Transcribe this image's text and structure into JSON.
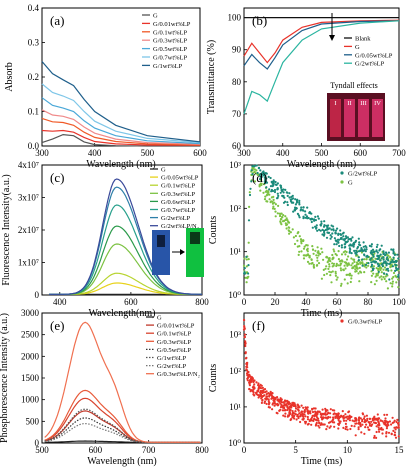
{
  "chart_data": [
    {
      "id": "a",
      "type": "line",
      "panel_label": "(a)",
      "xlabel": "Wavelength (nm)",
      "ylabel": "Absorb",
      "xlim": [
        300,
        600
      ],
      "ylim": [
        0,
        0.4
      ],
      "xticks": [
        300,
        400,
        500,
        600
      ],
      "yticks": [
        0.0,
        0.1,
        0.2,
        0.3,
        0.4
      ],
      "ytick_labels": [
        "0.0",
        "0.1",
        "0.2",
        "0.3",
        "0.4"
      ],
      "legend": "top-right",
      "series": [
        {
          "name": "G",
          "color": "#555555",
          "x": [
            300,
            320,
            340,
            360,
            380,
            400,
            440,
            500,
            600
          ],
          "y": [
            0.01,
            0.02,
            0.033,
            0.03,
            0.012,
            0.004,
            0.001,
            0.0,
            0.0
          ]
        },
        {
          "name": "G/0.01wt%LP",
          "color": "#e8332a",
          "x": [
            300,
            320,
            340,
            360,
            380,
            400,
            440,
            500,
            600
          ],
          "y": [
            0.045,
            0.043,
            0.045,
            0.04,
            0.025,
            0.013,
            0.006,
            0.003,
            0.002
          ]
        },
        {
          "name": "G/0.1wt%LP",
          "color": "#f05a28",
          "x": [
            300,
            320,
            340,
            360,
            380,
            400,
            440,
            500,
            600
          ],
          "y": [
            0.08,
            0.07,
            0.068,
            0.06,
            0.04,
            0.025,
            0.013,
            0.006,
            0.003
          ]
        },
        {
          "name": "G/0.3wt%LP",
          "color": "#f08a8a",
          "x": [
            300,
            320,
            340,
            360,
            380,
            400,
            440,
            500,
            600
          ],
          "y": [
            0.105,
            0.09,
            0.086,
            0.077,
            0.055,
            0.037,
            0.02,
            0.01,
            0.005
          ]
        },
        {
          "name": "G/0.5wt%LP",
          "color": "#4aa8d8",
          "x": [
            300,
            320,
            340,
            360,
            380,
            400,
            440,
            500,
            600
          ],
          "y": [
            0.14,
            0.118,
            0.11,
            0.1,
            0.073,
            0.052,
            0.03,
            0.015,
            0.007
          ]
        },
        {
          "name": "G/0.7wt%LP",
          "color": "#7ec6e8",
          "x": [
            300,
            320,
            340,
            360,
            380,
            400,
            440,
            500,
            600
          ],
          "y": [
            0.18,
            0.155,
            0.145,
            0.132,
            0.1,
            0.072,
            0.043,
            0.022,
            0.01
          ]
        },
        {
          "name": "G/1wt%LP",
          "color": "#1f5f8b",
          "x": [
            300,
            320,
            340,
            360,
            380,
            400,
            440,
            500,
            600
          ],
          "y": [
            0.245,
            0.21,
            0.192,
            0.175,
            0.135,
            0.1,
            0.06,
            0.03,
            0.012
          ]
        }
      ]
    },
    {
      "id": "b",
      "type": "line",
      "panel_label": "(b)",
      "xlabel": "Wavelength (nm)",
      "ylabel": "Transmittance (%)",
      "xlim": [
        300,
        700
      ],
      "ylim": [
        60,
        103
      ],
      "xticks": [
        300,
        400,
        500,
        600,
        700
      ],
      "yticks": [
        60,
        70,
        80,
        90,
        100
      ],
      "ytick_labels": [
        "60",
        "70",
        "80",
        "90",
        "100"
      ],
      "legend": "top-right",
      "annotation": "Tyndall effects",
      "vials": [
        "I",
        "II",
        "III",
        "IV"
      ],
      "series": [
        {
          "name": "Blank",
          "color": "#111111",
          "x": [
            300,
            400,
            500,
            600,
            700
          ],
          "y": [
            100,
            100,
            100,
            100,
            100
          ]
        },
        {
          "name": "G",
          "color": "#e8332a",
          "x": [
            300,
            320,
            340,
            360,
            380,
            400,
            450,
            500,
            600,
            700
          ],
          "y": [
            88,
            92,
            89,
            86,
            89,
            93,
            97,
            98.5,
            99,
            99.2
          ]
        },
        {
          "name": "G/0.05wt%LP",
          "color": "#1f5f8b",
          "x": [
            300,
            320,
            340,
            360,
            380,
            400,
            450,
            500,
            600,
            700
          ],
          "y": [
            85,
            88.5,
            86,
            84,
            87.5,
            91.5,
            96,
            98,
            98.8,
            99
          ]
        },
        {
          "name": "G/2wt%LP",
          "color": "#2bb5a0",
          "x": [
            300,
            320,
            340,
            360,
            380,
            400,
            450,
            500,
            600,
            700
          ],
          "y": [
            70,
            77,
            76,
            74,
            80,
            86,
            93,
            96.5,
            98.3,
            99
          ]
        }
      ]
    },
    {
      "id": "c",
      "type": "line",
      "panel_label": "(c)",
      "xlabel": "Wavelength(nm)",
      "ylabel": "Fluorescence Intensity(a.u.)",
      "xlim": [
        350,
        800
      ],
      "ylim": [
        0,
        40000000.0
      ],
      "xticks": [
        400,
        600,
        800
      ],
      "yticks": [
        0,
        10000000.0,
        20000000.0,
        30000000.0,
        40000000.0
      ],
      "ytick_labels": [
        "0",
        "1x10⁷",
        "2x10⁷",
        "3x10⁷",
        "4x10⁷"
      ],
      "legend": "top-right",
      "series": [
        {
          "name": "G",
          "color": "#222222",
          "peak": 0.0
        },
        {
          "name": "G/0.05wt%LP",
          "color": "#e8d21a",
          "peak": 3500000.0
        },
        {
          "name": "G/0.1wt%LP",
          "color": "#b8d430",
          "peak": 6500000.0
        },
        {
          "name": "G/0.3wt%LP",
          "color": "#7cc242",
          "peak": 15500000.0
        },
        {
          "name": "G/0.6wt%LP",
          "color": "#2a9a4a",
          "peak": 21000000.0
        },
        {
          "name": "G/0.7wt%LP",
          "color": "#28a08c",
          "peak": 27500000.0
        },
        {
          "name": "G/2wt%LP",
          "color": "#2d7fa8",
          "peak": 33000000.0
        },
        {
          "name": "G/2wt%LP/N₂",
          "color": "#3a4a9a",
          "peak": 35500000.0
        }
      ],
      "peak_x": 560
    },
    {
      "id": "d",
      "type": "scatter",
      "panel_label": "(d)",
      "xlabel": "Time (ms)",
      "ylabel": "Counts",
      "xlim": [
        0,
        100
      ],
      "ylim_log": [
        0,
        3
      ],
      "xticks": [
        0,
        20,
        40,
        60,
        80,
        100
      ],
      "yticks_log": [
        0,
        1,
        2,
        3
      ],
      "ytick_labels": [
        "10⁰",
        "10¹",
        "10²",
        "10³"
      ],
      "legend": "top-right",
      "series": [
        {
          "name": "G/2wt%LP",
          "color": "#1a8a7a",
          "tau": 14
        },
        {
          "name": "G",
          "color": "#7cc242",
          "tau": 7
        }
      ]
    },
    {
      "id": "e",
      "type": "line",
      "panel_label": "(e)",
      "xlabel": "Wavelength (nm)",
      "ylabel": "Phosphorescence Intensity (a.u.)",
      "xlim": [
        500,
        800
      ],
      "ylim": [
        0,
        3000
      ],
      "xticks": [
        500,
        600,
        700,
        800
      ],
      "yticks": [
        0,
        500,
        1000,
        1500,
        2000,
        2500,
        3000
      ],
      "ytick_labels": [
        "0",
        "500",
        "1000",
        "1500",
        "2000",
        "2500",
        "3000"
      ],
      "legend": "top-right",
      "peak_x": 580,
      "series": [
        {
          "name": "G",
          "color": "#222222",
          "dash": false,
          "peak": 30
        },
        {
          "name": "G/0.01wt%LP",
          "color": "#c0392b",
          "dash": false,
          "peak": 720
        },
        {
          "name": "G/0.1wt%LP",
          "color": "#d9442f",
          "dash": false,
          "peak": 1010
        },
        {
          "name": "G/0.3wt%LP",
          "color": "#e85a3a",
          "dash": false,
          "peak": 1190
        },
        {
          "name": "G/0.5wt%LP",
          "color": "#333333",
          "dash": true,
          "peak": 560
        },
        {
          "name": "G/1wt%LP",
          "color": "#555555",
          "dash": true,
          "peak": 760
        },
        {
          "name": "G/2wt%LP",
          "color": "#777777",
          "dash": true,
          "peak": 430
        },
        {
          "name": "G/0.3wt%LP/N₂",
          "color": "#f07050",
          "dash": false,
          "peak": 2750
        }
      ]
    },
    {
      "id": "f",
      "type": "scatter",
      "panel_label": "(f)",
      "xlabel": "Time (ms)",
      "ylabel": "Counts",
      "xlim": [
        0,
        15
      ],
      "ylim_log": [
        0,
        3.6
      ],
      "xticks": [
        0,
        5,
        10,
        15
      ],
      "yticks_log": [
        0,
        1,
        2,
        3
      ],
      "ytick_labels": [
        "10⁰",
        "10¹",
        "10²",
        "10³"
      ],
      "legend": "top-right",
      "series": [
        {
          "name": "G/0.3wt%LP",
          "color": "#e8332a"
        }
      ]
    }
  ]
}
